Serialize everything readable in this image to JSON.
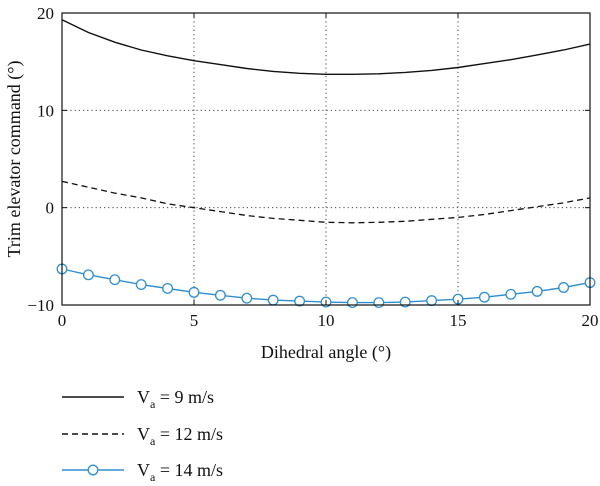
{
  "chart_data": {
    "type": "line",
    "xlabel": "Dihedral angle (°)",
    "ylabel": "Trim elevator command (°)",
    "xlim": [
      0,
      20
    ],
    "ylim": [
      -10,
      20
    ],
    "xticks": [
      0,
      5,
      10,
      15,
      20
    ],
    "yticks": [
      -10,
      0,
      10,
      20
    ],
    "grid": "dotted, on major ticks",
    "legend_placement": "below-left",
    "series": [
      {
        "name_main": "V",
        "name_sub": "a",
        "name_rest": " = 9 m/s",
        "style": "solid",
        "color": "#111111",
        "x": [
          0,
          1,
          2,
          3,
          4,
          5,
          6,
          7,
          8,
          9,
          10,
          11,
          12,
          13,
          14,
          15,
          16,
          17,
          18,
          19,
          20
        ],
        "y": [
          19.3,
          18.0,
          17.0,
          16.2,
          15.6,
          15.1,
          14.7,
          14.3,
          14.0,
          13.8,
          13.7,
          13.7,
          13.75,
          13.9,
          14.1,
          14.4,
          14.8,
          15.2,
          15.7,
          16.2,
          16.8
        ]
      },
      {
        "name_main": "V",
        "name_sub": "a",
        "name_rest": " = 12 m/s",
        "style": "dashed",
        "color": "#111111",
        "x": [
          0,
          1,
          2,
          3,
          4,
          5,
          6,
          7,
          8,
          9,
          10,
          11,
          12,
          13,
          14,
          15,
          16,
          17,
          18,
          19,
          20
        ],
        "y": [
          2.7,
          2.1,
          1.5,
          1.0,
          0.4,
          0.0,
          -0.4,
          -0.8,
          -1.1,
          -1.3,
          -1.5,
          -1.55,
          -1.5,
          -1.4,
          -1.2,
          -1.0,
          -0.7,
          -0.3,
          0.1,
          0.5,
          1.0
        ]
      },
      {
        "name_main": "V",
        "name_sub": "a",
        "name_rest": " = 14 m/s",
        "style": "solid-with-circle-markers",
        "color": "#2e8fd0",
        "x": [
          0,
          1,
          2,
          3,
          4,
          5,
          6,
          7,
          8,
          9,
          10,
          11,
          12,
          13,
          14,
          15,
          16,
          17,
          18,
          19,
          20
        ],
        "y": [
          -6.3,
          -6.9,
          -7.4,
          -7.9,
          -8.3,
          -8.7,
          -9.0,
          -9.3,
          -9.5,
          -9.6,
          -9.7,
          -9.75,
          -9.75,
          -9.7,
          -9.55,
          -9.4,
          -9.2,
          -8.9,
          -8.6,
          -8.2,
          -7.7
        ]
      }
    ]
  }
}
